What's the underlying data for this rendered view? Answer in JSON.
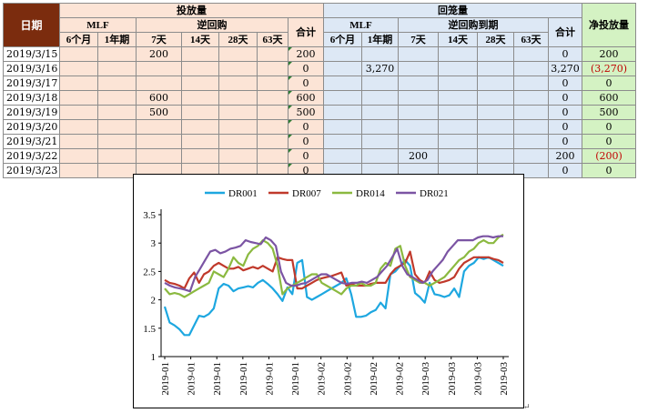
{
  "table": {
    "headers": {
      "date": "日期",
      "injection": "投放量",
      "withdrawal": "回笼量",
      "net": "净投放量",
      "mlf": "MLF",
      "reverse_repo": "逆回购",
      "reverse_repo_maturity": "逆回购到期",
      "total": "合计",
      "terms_mlf": [
        "6个月",
        "1年期"
      ],
      "terms_repo": [
        "7天",
        "14天",
        "28天",
        "63天"
      ]
    },
    "rows": [
      {
        "date": "2019/3/15",
        "inj": [
          "",
          "",
          "200",
          "",
          "",
          ""
        ],
        "inj_total": "200",
        "wd": [
          "",
          "",
          "",
          "",
          "",
          ""
        ],
        "wd_total": "0",
        "net": "200",
        "net_neg": false
      },
      {
        "date": "2019/3/16",
        "inj": [
          "",
          "",
          "",
          "",
          "",
          ""
        ],
        "inj_total": "0",
        "wd": [
          "",
          "3,270",
          "",
          "",
          "",
          ""
        ],
        "wd_total": "3,270",
        "net": "(3,270)",
        "net_neg": true
      },
      {
        "date": "2019/3/17",
        "inj": [
          "",
          "",
          "",
          "",
          "",
          ""
        ],
        "inj_total": "0",
        "wd": [
          "",
          "",
          "",
          "",
          "",
          ""
        ],
        "wd_total": "0",
        "net": "0",
        "net_neg": false
      },
      {
        "date": "2019/3/18",
        "inj": [
          "",
          "",
          "600",
          "",
          "",
          ""
        ],
        "inj_total": "600",
        "wd": [
          "",
          "",
          "",
          "",
          "",
          ""
        ],
        "wd_total": "0",
        "net": "600",
        "net_neg": false
      },
      {
        "date": "2019/3/19",
        "inj": [
          "",
          "",
          "500",
          "",
          "",
          ""
        ],
        "inj_total": "500",
        "wd": [
          "",
          "",
          "",
          "",
          "",
          ""
        ],
        "wd_total": "0",
        "net": "500",
        "net_neg": false
      },
      {
        "date": "2019/3/20",
        "inj": [
          "",
          "",
          "",
          "",
          "",
          ""
        ],
        "inj_total": "0",
        "wd": [
          "",
          "",
          "",
          "",
          "",
          ""
        ],
        "wd_total": "0",
        "net": "0",
        "net_neg": false
      },
      {
        "date": "2019/3/21",
        "inj": [
          "",
          "",
          "",
          "",
          "",
          ""
        ],
        "inj_total": "0",
        "wd": [
          "",
          "",
          "",
          "",
          "",
          ""
        ],
        "wd_total": "0",
        "net": "0",
        "net_neg": false
      },
      {
        "date": "2019/3/22",
        "inj": [
          "",
          "",
          "",
          "",
          "",
          ""
        ],
        "inj_total": "0",
        "wd": [
          "",
          "",
          "200",
          "",
          "",
          ""
        ],
        "wd_total": "200",
        "net": "(200)",
        "net_neg": true
      },
      {
        "date": "2019/3/23",
        "inj": [
          "",
          "",
          "",
          "",
          "",
          ""
        ],
        "inj_total": "0",
        "wd": [
          "",
          "",
          "",
          "",
          "",
          ""
        ],
        "wd_total": "0",
        "net": "0",
        "net_neg": false
      }
    ]
  },
  "chart_data": {
    "type": "line",
    "title": "",
    "xlabel": "",
    "ylabel": "",
    "ylim": [
      1,
      3.5
    ],
    "yticks": [
      "1",
      "1.5",
      "2",
      "2.5",
      "3",
      "3.5"
    ],
    "xticks": [
      "2019-01",
      "2019-01",
      "2019-01",
      "2019-01",
      "2019-01",
      "2019-01",
      "2019-02",
      "2019-02",
      "2019-02",
      "2019-02",
      "2019-03",
      "2019-03",
      "2019-03",
      "2019-03"
    ],
    "legend_position": "top",
    "grid": false,
    "series": [
      {
        "name": "DR001",
        "color": "#1da7e0",
        "values": [
          1.88,
          1.6,
          1.55,
          1.48,
          1.38,
          1.38,
          1.55,
          1.72,
          1.7,
          1.75,
          1.85,
          2.2,
          2.28,
          2.25,
          2.15,
          2.2,
          2.22,
          2.24,
          2.22,
          2.3,
          2.35,
          2.28,
          2.2,
          2.1,
          1.98,
          2.22,
          2.1,
          2.65,
          2.7,
          2.05,
          2.0,
          2.05,
          2.1,
          2.15,
          2.2,
          2.25,
          2.3,
          2.38,
          2.1,
          1.7,
          1.7,
          1.72,
          1.78,
          1.82,
          1.95,
          1.85,
          2.45,
          2.5,
          2.6,
          2.7,
          2.6,
          2.12,
          2.05,
          1.95,
          2.3,
          2.1,
          2.08,
          2.05,
          2.08,
          2.2,
          2.05,
          2.5,
          2.6,
          2.65,
          2.75,
          2.72,
          2.75,
          2.7,
          2.65,
          2.6
        ]
      },
      {
        "name": "DR007",
        "color": "#c0392b",
        "values": [
          2.35,
          2.3,
          2.28,
          2.25,
          2.2,
          2.38,
          2.48,
          2.3,
          2.45,
          2.5,
          2.6,
          2.65,
          2.6,
          2.55,
          2.55,
          2.58,
          2.52,
          2.55,
          2.58,
          2.55,
          2.6,
          2.55,
          2.5,
          2.75,
          2.72,
          2.7,
          2.7,
          2.2,
          2.2,
          2.25,
          2.3,
          2.35,
          2.38,
          2.4,
          2.42,
          2.45,
          2.48,
          2.25,
          2.28,
          2.25,
          2.25,
          2.25,
          2.28,
          2.3,
          2.3,
          2.3,
          2.45,
          2.55,
          2.6,
          2.65,
          2.85,
          2.45,
          2.35,
          2.3,
          2.5,
          2.35,
          2.3,
          2.32,
          2.35,
          2.4,
          2.55,
          2.65,
          2.7,
          2.75,
          2.75,
          2.75,
          2.75,
          2.72,
          2.7,
          2.65
        ]
      },
      {
        "name": "DR014",
        "color": "#8bb940",
        "values": [
          2.2,
          2.1,
          2.12,
          2.1,
          2.05,
          2.1,
          2.15,
          2.2,
          2.25,
          2.3,
          2.5,
          2.45,
          2.4,
          2.55,
          2.75,
          2.65,
          2.6,
          2.8,
          2.9,
          2.95,
          3.05,
          3.0,
          2.9,
          2.6,
          2.1,
          2.2,
          2.25,
          2.3,
          2.35,
          2.4,
          2.45,
          2.45,
          2.3,
          2.25,
          2.2,
          2.15,
          2.1,
          2.2,
          2.25,
          2.25,
          2.3,
          2.25,
          2.25,
          2.3,
          2.55,
          2.65,
          2.6,
          2.9,
          2.95,
          2.6,
          2.4,
          2.35,
          2.3,
          2.3,
          2.25,
          2.3,
          2.35,
          2.4,
          2.5,
          2.6,
          2.7,
          2.75,
          2.85,
          2.9,
          3.0,
          3.05,
          3.0,
          3.0,
          3.1,
          3.15
        ]
      },
      {
        "name": "DR021",
        "color": "#7b54a3",
        "values": [
          2.3,
          2.25,
          2.22,
          2.2,
          2.18,
          2.15,
          2.4,
          2.55,
          2.7,
          2.85,
          2.88,
          2.82,
          2.85,
          2.9,
          2.92,
          2.95,
          3.05,
          3.02,
          3.0,
          2.98,
          3.1,
          3.05,
          2.95,
          2.5,
          2.3,
          2.25,
          2.25,
          2.28,
          2.3,
          2.35,
          2.4,
          2.45,
          2.45,
          2.4,
          2.35,
          2.3,
          2.28,
          2.3,
          2.3,
          2.32,
          2.3,
          2.35,
          2.4,
          2.5,
          2.6,
          2.75,
          2.9,
          2.6,
          2.45,
          2.4,
          2.35,
          2.3,
          2.35,
          2.5,
          2.6,
          2.7,
          2.85,
          2.95,
          3.05,
          3.05,
          3.05,
          3.05,
          3.1,
          3.12,
          3.12,
          3.1,
          3.12,
          3.12
        ]
      }
    ]
  }
}
